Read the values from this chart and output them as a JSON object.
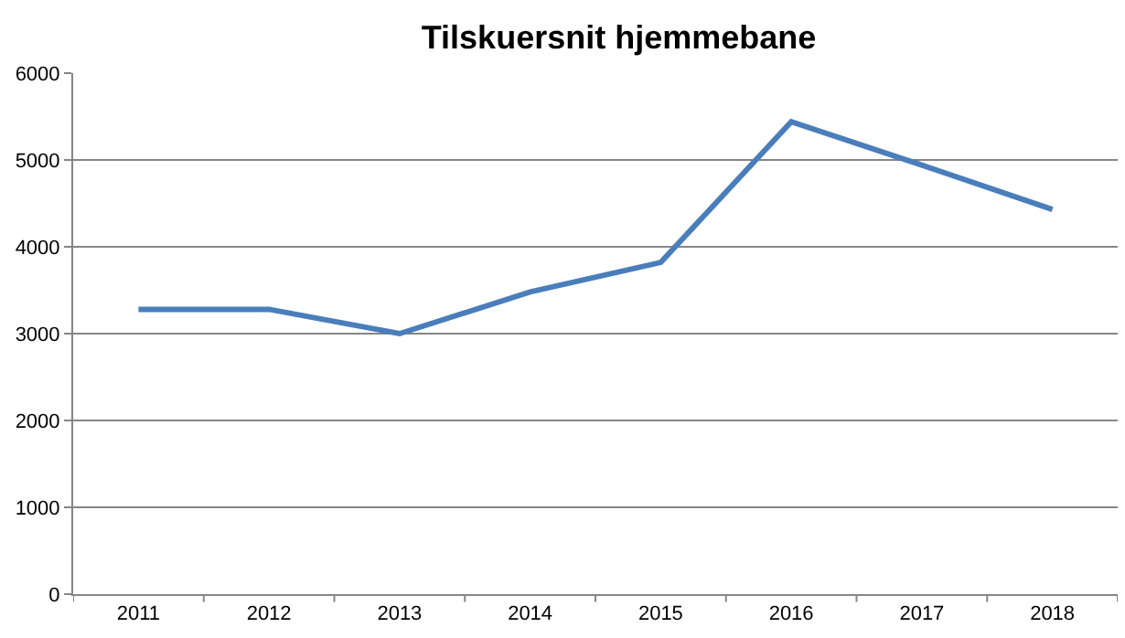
{
  "chart_data": {
    "type": "line",
    "title": "Tilskuersnit hjemmebane",
    "categories": [
      "2011",
      "2012",
      "2013",
      "2014",
      "2015",
      "2016",
      "2017",
      "2018"
    ],
    "series": [
      {
        "color": "#4a7ebb",
        "values": [
          3280,
          3280,
          3000,
          3480,
          3820,
          5440,
          4940,
          4430
        ]
      }
    ],
    "ylim": [
      0,
      6000
    ],
    "yticks": [
      0,
      1000,
      2000,
      3000,
      4000,
      5000,
      6000
    ],
    "grid": "y",
    "marker": "none",
    "line_style": "solid"
  }
}
